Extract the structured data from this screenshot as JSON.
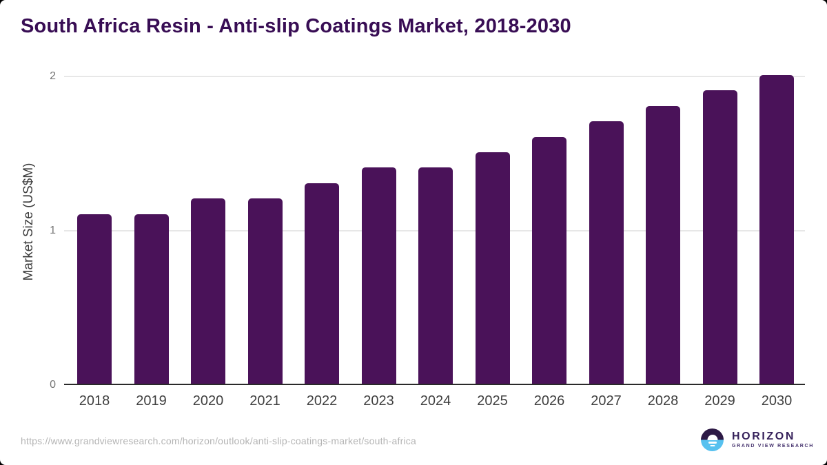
{
  "title": "South Africa Resin - Anti-slip Coatings Market, 2018-2030",
  "chart_data": {
    "type": "bar",
    "categories": [
      "2018",
      "2019",
      "2020",
      "2021",
      "2022",
      "2023",
      "2024",
      "2025",
      "2026",
      "2027",
      "2028",
      "2029",
      "2030"
    ],
    "values": [
      1.1,
      1.1,
      1.2,
      1.2,
      1.3,
      1.4,
      1.4,
      1.5,
      1.6,
      1.7,
      1.8,
      1.9,
      2.0
    ],
    "title": "South Africa Resin - Anti-slip Coatings Market, 2018-2030",
    "xlabel": "",
    "ylabel": "Market Size (US$M)",
    "ylim": [
      0,
      2
    ],
    "yticks": [
      0,
      1,
      2
    ],
    "grid": true,
    "legend": false,
    "bar_color": "#4a1259"
  },
  "footer": {
    "source_url": "https://www.grandviewresearch.com/horizon/outlook/anti-slip-coatings-market/south-africa",
    "logo": {
      "brand": "HORIZON",
      "tagline": "GRAND VIEW RESEARCH"
    }
  },
  "colors": {
    "bar": "#4a1259",
    "title_text": "#380d54",
    "axis_line": "#2a2a2a",
    "gridline": "#e7e7e7",
    "y_tick_text": "#757575",
    "x_tick_text": "#3f3f3f",
    "url_text": "#b4b4b4",
    "logo_dark_half": "#2d1945",
    "logo_blue_half": "#57c1ef"
  }
}
